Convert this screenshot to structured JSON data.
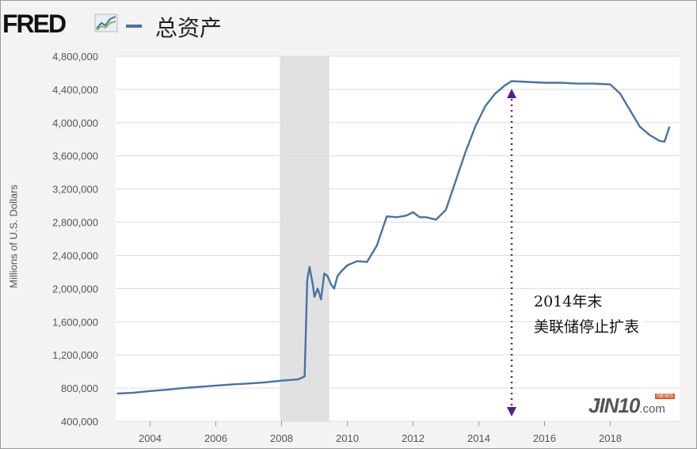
{
  "header": {
    "logo": "FRED",
    "title": "总资产"
  },
  "chart_data": {
    "type": "line",
    "title": "总资产",
    "ylabel": "Millions of U.S. Dollars",
    "xlim": [
      2003.0,
      2019.8
    ],
    "ylim": [
      400000,
      4800000
    ],
    "yticks": [
      400000,
      800000,
      1200000,
      1600000,
      2000000,
      2400000,
      2800000,
      3200000,
      3600000,
      4000000,
      4400000,
      4800000
    ],
    "ytick_labels": [
      "400,000",
      "800,000",
      "1,200,000",
      "1,600,000",
      "2,000,000",
      "2,400,000",
      "2,800,000",
      "3,200,000",
      "3,600,000",
      "4,000,000",
      "4,400,000",
      "4,800,000"
    ],
    "xticks": [
      2004,
      2006,
      2008,
      2010,
      2012,
      2014,
      2016,
      2018
    ],
    "xtick_labels": [
      "2004",
      "2006",
      "2008",
      "2010",
      "2012",
      "2014",
      "2016",
      "2018"
    ],
    "grid": "horizontal",
    "recession": [
      2007.95,
      2009.45
    ],
    "series": [
      {
        "color": "#4573a7",
        "x": [
          2003.0,
          2003.5,
          2004.0,
          2004.5,
          2005.0,
          2005.5,
          2006.0,
          2006.5,
          2007.0,
          2007.5,
          2008.0,
          2008.5,
          2008.7,
          2008.78,
          2008.85,
          2008.95,
          2009.0,
          2009.1,
          2009.2,
          2009.3,
          2009.4,
          2009.5,
          2009.6,
          2009.7,
          2009.8,
          2010.0,
          2010.3,
          2010.6,
          2010.9,
          2011.2,
          2011.5,
          2011.8,
          2012.0,
          2012.2,
          2012.4,
          2012.7,
          2013.0,
          2013.3,
          2013.6,
          2013.9,
          2014.2,
          2014.5,
          2014.8,
          2015.0,
          2015.5,
          2016.0,
          2016.5,
          2017.0,
          2017.5,
          2018.0,
          2018.3,
          2018.6,
          2018.9,
          2019.2,
          2019.5,
          2019.65,
          2019.8
        ],
        "y": [
          735000,
          745000,
          765000,
          780000,
          800000,
          815000,
          830000,
          845000,
          855000,
          870000,
          890000,
          905000,
          940000,
          2100000,
          2260000,
          2050000,
          1900000,
          2000000,
          1870000,
          2180000,
          2150000,
          2050000,
          2000000,
          2150000,
          2200000,
          2280000,
          2330000,
          2320000,
          2520000,
          2870000,
          2860000,
          2880000,
          2920000,
          2860000,
          2860000,
          2830000,
          2950000,
          3300000,
          3650000,
          3960000,
          4200000,
          4350000,
          4450000,
          4500000,
          4490000,
          4480000,
          4480000,
          4470000,
          4470000,
          4460000,
          4350000,
          4150000,
          3950000,
          3850000,
          3780000,
          3770000,
          3950000
        ]
      }
    ]
  },
  "annotation": {
    "line1": "2014年末",
    "line2": "美联储停止扩表",
    "x": 2015.0
  },
  "watermark": {
    "text": "JIN10",
    "suffix": ".com",
    "badge": "NEWS"
  },
  "colors": {
    "line": "#4573a7",
    "recession": "#e1e1e1",
    "arrow": "#5b1a8e",
    "grid": "#dcdcdc"
  }
}
